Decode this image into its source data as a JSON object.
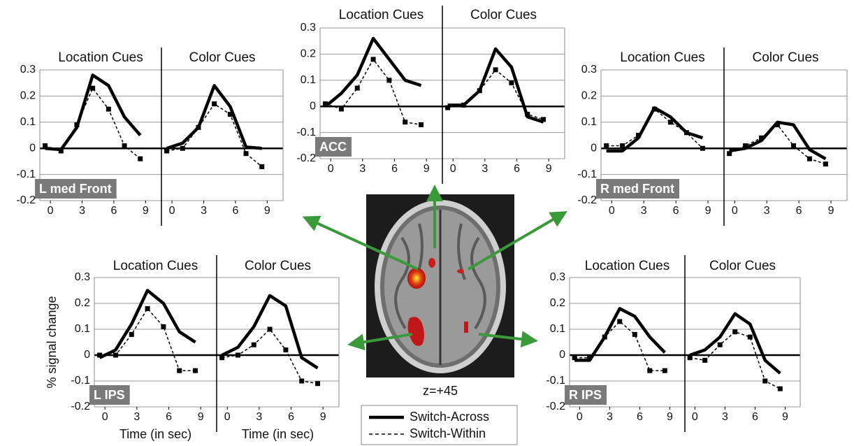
{
  "chart_data": [
    {
      "type": "line",
      "label": "L med Front",
      "ylim": [
        -0.2,
        0.3
      ],
      "yticks": [
        0.3,
        0.2,
        0.1,
        0,
        -0.1,
        -0.2
      ],
      "xlim": [
        -1,
        10.5
      ],
      "xticks": [
        0,
        3,
        6,
        9
      ],
      "subplots": [
        {
          "title": "Location Cues",
          "x": [
            -0.5,
            1,
            2.5,
            4,
            5.5,
            7,
            8.5
          ],
          "series": [
            {
              "values": [
                0,
                -0.005,
                0.08,
                0.28,
                0.24,
                0.12,
                0.05
              ]
            },
            {
              "values": [
                0.01,
                -0.01,
                0.09,
                0.23,
                0.15,
                0.01,
                -0.04
              ]
            }
          ]
        },
        {
          "title": "Color Cues",
          "x": [
            -0.5,
            1,
            2.5,
            4,
            5.5,
            7,
            8.5
          ],
          "series": [
            {
              "values": [
                0,
                0.02,
                0.08,
                0.24,
                0.16,
                0.005,
                0
              ]
            },
            {
              "values": [
                -0.01,
                0,
                0.08,
                0.17,
                0.13,
                -0.02,
                -0.07
              ]
            }
          ]
        }
      ]
    },
    {
      "type": "line",
      "label": "ACC",
      "ylim": [
        -0.2,
        0.3
      ],
      "yticks": [
        0.3,
        0.2,
        0.1,
        0,
        -0.1,
        -0.2
      ],
      "xlim": [
        -1,
        10.5
      ],
      "xticks": [
        0,
        3,
        6,
        9
      ],
      "subplots": [
        {
          "title": "Location Cues",
          "x": [
            -0.5,
            1,
            2.5,
            4,
            5.5,
            7,
            8.5
          ],
          "series": [
            {
              "values": [
                0,
                0.05,
                0.12,
                0.26,
                0.18,
                0.1,
                0.08
              ]
            },
            {
              "values": [
                0.01,
                -0.01,
                0.07,
                0.18,
                0.1,
                -0.06,
                -0.07
              ]
            }
          ]
        },
        {
          "title": "Color Cues",
          "x": [
            -0.5,
            1,
            2.5,
            4,
            5.5,
            7,
            8.5
          ],
          "series": [
            {
              "values": [
                0.005,
                0.005,
                0.06,
                0.22,
                0.15,
                -0.04,
                -0.06
              ]
            },
            {
              "values": [
                -0.005,
                0.005,
                0.06,
                0.14,
                0.09,
                -0.03,
                -0.05
              ]
            }
          ]
        }
      ]
    },
    {
      "type": "line",
      "label": "R med Front",
      "ylim": [
        -0.2,
        0.3
      ],
      "yticks": [
        0.3,
        0.2,
        0.1,
        0,
        -0.1,
        -0.2
      ],
      "xlim": [
        -1,
        10.5
      ],
      "xticks": [
        0,
        3,
        6,
        9
      ],
      "subplots": [
        {
          "title": "Location Cues",
          "x": [
            -0.5,
            1,
            2.5,
            4,
            5.5,
            7,
            8.5
          ],
          "series": [
            {
              "values": [
                -0.01,
                -0.01,
                0.04,
                0.155,
                0.12,
                0.06,
                0.04
              ]
            },
            {
              "values": [
                0.01,
                0.01,
                0.05,
                0.15,
                0.1,
                0.06,
                0
              ]
            }
          ]
        },
        {
          "title": "Color Cues",
          "x": [
            -0.5,
            1,
            2.5,
            4,
            5.5,
            7,
            8.5
          ],
          "series": [
            {
              "values": [
                -0.01,
                0,
                0.03,
                0.1,
                0.09,
                -0.005,
                -0.04
              ]
            },
            {
              "values": [
                -0.02,
                0.01,
                0.04,
                0.09,
                0.01,
                -0.04,
                -0.06
              ]
            }
          ]
        }
      ]
    },
    {
      "type": "line",
      "label": "L IPS",
      "ylabel": "% signal change",
      "ylim": [
        -0.2,
        0.3
      ],
      "yticks": [
        0.3,
        0.2,
        0.1,
        0,
        -0.1,
        -0.2
      ],
      "xlim": [
        -1,
        10.5
      ],
      "xticks": [
        0,
        3,
        6,
        9
      ],
      "subplots": [
        {
          "title": "Location Cues",
          "xlabel": "Time (in sec)",
          "x": [
            -0.5,
            1,
            2.5,
            4,
            5.5,
            7,
            8.5
          ],
          "series": [
            {
              "values": [
                -0.01,
                0.02,
                0.12,
                0.25,
                0.2,
                0.09,
                0.05
              ]
            },
            {
              "values": [
                0,
                0,
                0.08,
                0.18,
                0.11,
                -0.06,
                -0.06
              ]
            }
          ]
        },
        {
          "title": "Color Cues",
          "xlabel": "Time (in sec)",
          "x": [
            -0.5,
            1,
            2.5,
            4,
            5.5,
            7,
            8.5
          ],
          "series": [
            {
              "values": [
                0,
                0.03,
                0.11,
                0.23,
                0.19,
                -0.01,
                -0.05
              ]
            },
            {
              "values": [
                -0.01,
                0,
                0.04,
                0.1,
                0.02,
                -0.1,
                -0.11
              ]
            }
          ]
        }
      ]
    },
    {
      "type": "line",
      "label": "R IPS",
      "ylim": [
        -0.2,
        0.3
      ],
      "yticks": [
        0.3,
        0.2,
        0.1,
        0,
        -0.1,
        -0.2
      ],
      "xlim": [
        -1,
        10.5
      ],
      "xticks": [
        0,
        3,
        6,
        9
      ],
      "subplots": [
        {
          "title": "Location Cues",
          "x": [
            -0.5,
            1,
            2.5,
            4,
            5.5,
            7,
            8.5
          ],
          "series": [
            {
              "values": [
                -0.02,
                -0.02,
                0.07,
                0.18,
                0.15,
                0.07,
                0.01
              ]
            },
            {
              "values": [
                -0.01,
                -0.01,
                0.07,
                0.13,
                0.08,
                -0.06,
                -0.06
              ]
            }
          ]
        },
        {
          "title": "Color Cues",
          "x": [
            -0.5,
            1,
            2.5,
            4,
            5.5,
            7,
            8.5
          ],
          "series": [
            {
              "values": [
                0,
                0.02,
                0.07,
                0.16,
                0.12,
                -0.02,
                -0.07
              ]
            },
            {
              "values": [
                -0.01,
                -0.02,
                0.04,
                0.09,
                0.07,
                -0.1,
                -0.13
              ]
            }
          ]
        }
      ]
    }
  ],
  "legend": [
    {
      "name": "Switch-Across",
      "color": "#000000",
      "dash": false
    },
    {
      "name": "Switch-Within",
      "color": "#000000",
      "dash": true,
      "marker": "square"
    }
  ],
  "caption": "z=+45"
}
